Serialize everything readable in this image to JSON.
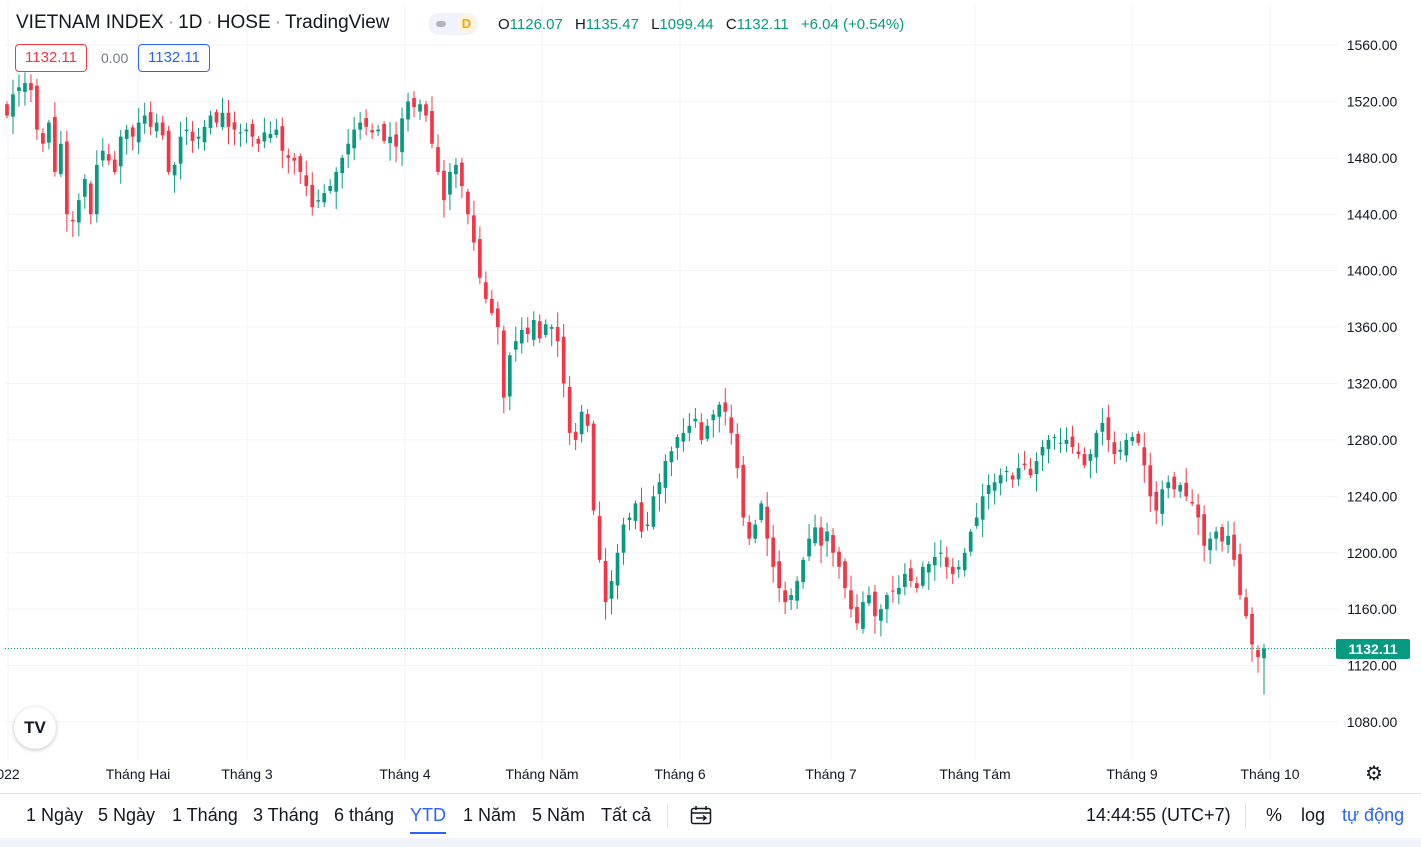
{
  "header": {
    "symbol": "VIETNAM INDEX",
    "interval": "1D",
    "exchange": "HOSE",
    "source": "TradingView",
    "interval_badge": "D",
    "ohlc": {
      "o_label": "O",
      "o": "1126.07",
      "h_label": "H",
      "h": "1135.47",
      "l_label": "L",
      "l": "1099.44",
      "c_label": "C",
      "c": "1132.11",
      "change": "+6.04 (+0.54%)"
    }
  },
  "order_boxes": {
    "sell": "1132.11",
    "spread": "0.00",
    "buy": "1132.11"
  },
  "last_price_label": "1132.11",
  "logo_text": "TV",
  "bottom_bar": {
    "ranges": [
      "1 Ngày",
      "5 Ngày",
      "1 Tháng",
      "3 Tháng",
      "6 tháng",
      "YTD",
      "1 Năm",
      "5 Năm",
      "Tất cả"
    ],
    "active_range": "YTD",
    "clock": "14:44:55 (UTC+7)",
    "percent_label": "%",
    "log_label": "log",
    "auto_label": "tự động"
  },
  "colors": {
    "up": "#089981",
    "down": "#f23645",
    "grid": "#f0f3fa",
    "accent": "#2962ff"
  },
  "chart_data": {
    "type": "candlestick",
    "title": "VIETNAM INDEX · 1D · HOSE",
    "ylim": [
      1052,
      1577
    ],
    "y_ticks": [
      1560,
      1520,
      1480,
      1440,
      1400,
      1360,
      1320,
      1280,
      1240,
      1200,
      1160,
      1120,
      1080
    ],
    "y_tick_labels": [
      "1560.00",
      "1520.00",
      "1480.00",
      "1440.00",
      "1400.00",
      "1360.00",
      "1320.00",
      "1280.00",
      "1240.00",
      "1200.00",
      "1160.00",
      "1120.00",
      "1080.00"
    ],
    "x_tick_labels": [
      "022",
      "Tháng Hai",
      "Tháng 3",
      "Tháng 4",
      "Tháng Năm",
      "Tháng 6",
      "Tháng 7",
      "Tháng Tám",
      "Tháng 9",
      "Tháng 10"
    ],
    "last_price": 1132.11,
    "closes": [
      1510,
      1525,
      1530,
      1533,
      1528,
      1500,
      1490,
      1505,
      1470,
      1490,
      1440,
      1435,
      1450,
      1465,
      1440,
      1475,
      1485,
      1478,
      1470,
      1495,
      1500,
      1495,
      1505,
      1510,
      1502,
      1505,
      1496,
      1470,
      1475,
      1495,
      1500,
      1492,
      1495,
      1502,
      1510,
      1505,
      1512,
      1502,
      1500,
      1498,
      1500,
      1495,
      1490,
      1498,
      1497,
      1500,
      1485,
      1480,
      1478,
      1470,
      1460,
      1445,
      1450,
      1455,
      1460,
      1470,
      1480,
      1490,
      1500,
      1505,
      1502,
      1498,
      1500,
      1492,
      1495,
      1488,
      1508,
      1520,
      1516,
      1518,
      1510,
      1490,
      1470,
      1450,
      1470,
      1475,
      1460,
      1440,
      1420,
      1395,
      1380,
      1370,
      1360,
      1310,
      1340,
      1350,
      1358,
      1355,
      1365,
      1352,
      1362,
      1360,
      1350,
      1320,
      1285,
      1280,
      1300,
      1290,
      1230,
      1195,
      1165,
      1180,
      1200,
      1220,
      1225,
      1235,
      1215,
      1220,
      1240,
      1250,
      1265,
      1272,
      1282,
      1285,
      1290,
      1295,
      1280,
      1290,
      1298,
      1305,
      1300,
      1285,
      1260,
      1225,
      1210,
      1220,
      1235,
      1210,
      1190,
      1175,
      1165,
      1170,
      1180,
      1195,
      1210,
      1218,
      1205,
      1215,
      1200,
      1190,
      1175,
      1160,
      1150,
      1165,
      1170,
      1155,
      1160,
      1170,
      1173,
      1175,
      1185,
      1180,
      1175,
      1190,
      1192,
      1197,
      1200,
      1190,
      1185,
      1190,
      1200,
      1215,
      1225,
      1240,
      1248,
      1250,
      1255,
      1258,
      1252,
      1260,
      1262,
      1255,
      1265,
      1275,
      1280,
      1282,
      1278,
      1280,
      1275,
      1270,
      1262,
      1270,
      1285,
      1292,
      1280,
      1270,
      1273,
      1280,
      1282,
      1278,
      1262,
      1240,
      1230,
      1245,
      1250,
      1245,
      1248,
      1240,
      1235,
      1225,
      1205,
      1210,
      1215,
      1208,
      1212,
      1195,
      1170,
      1155,
      1135,
      1126,
      1132.11
    ]
  }
}
